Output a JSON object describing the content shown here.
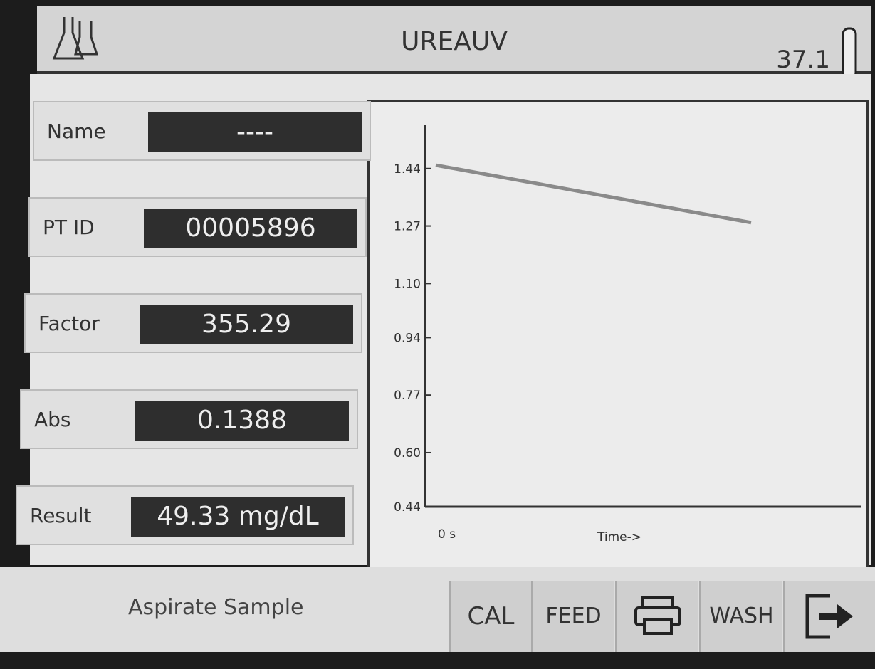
{
  "header": {
    "title": "UREAUV",
    "temperature": "37.1"
  },
  "fields": [
    {
      "label": "Name",
      "value": "----"
    },
    {
      "label": "PT ID",
      "value": "00005896"
    },
    {
      "label": "Factor",
      "value": "355.29"
    },
    {
      "label": "Abs",
      "value": "0.1388"
    },
    {
      "label": "Result",
      "value": "49.33 mg/dL"
    }
  ],
  "chart_data": {
    "type": "line",
    "categories": [
      null,
      null
    ],
    "series": [
      {
        "color": "#8a8a8a",
        "values": [
          1.45,
          1.28
        ]
      }
    ],
    "ylim": [
      0.44,
      1.57
    ],
    "yticks": [
      0.44,
      {
        "value": 0.6,
        "label": "0.60"
      },
      0.77,
      0.94,
      {
        "value": 1.1,
        "label": "1.10"
      },
      1.27,
      1.44
    ],
    "x_start_label": "0 s",
    "xlabel": "Time->"
  },
  "status": "Aspirate Sample",
  "buttons": [
    "CAL",
    "FEED",
    "WASH"
  ]
}
